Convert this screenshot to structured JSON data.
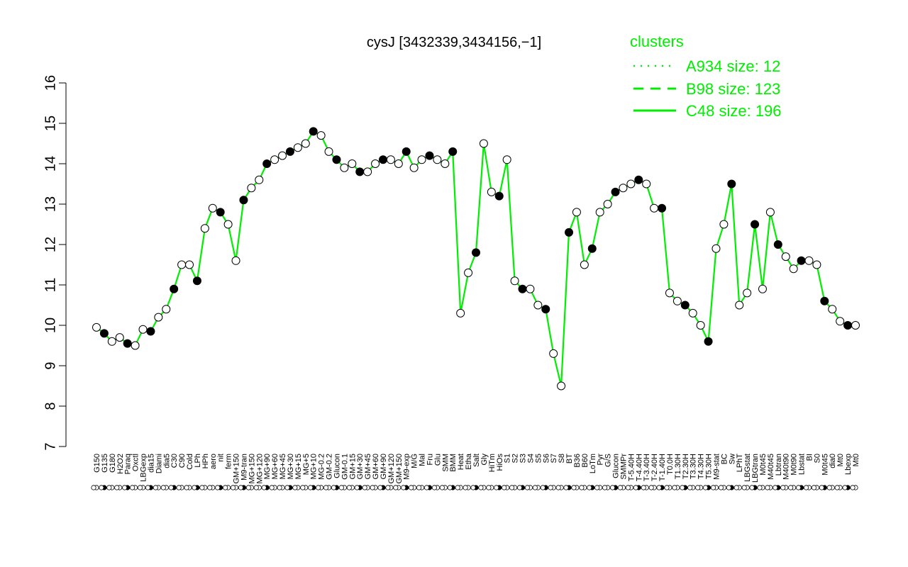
{
  "chart_data": {
    "type": "line",
    "title": "cysJ [3432339,3434156,−1]",
    "ylim": [
      7,
      16
    ],
    "y_ticks": [
      7,
      8,
      9,
      10,
      11,
      12,
      13,
      14,
      15,
      16
    ],
    "legend": {
      "title": "clusters",
      "placement": "top-right",
      "entries": [
        {
          "label": "A934 size: 12",
          "style": "dotted"
        },
        {
          "label": "B98 size: 123",
          "style": "dashed"
        },
        {
          "label": "C48 size: 196",
          "style": "solid"
        }
      ]
    },
    "colors": {
      "series": "#00ee00",
      "points_light": "#ffffff",
      "points_dark": "#000000"
    },
    "tick_labels": [
      "G150",
      "G135",
      "G180",
      "H2O2",
      "Paraq",
      "Oxctl",
      "LBGexp",
      "dia15",
      "Diami",
      "dia5",
      "C30",
      "C90",
      "Cold",
      "LPh",
      "HPh",
      "aero",
      "nit",
      "ferm",
      "GM+150",
      "M9-tran",
      "MG+150",
      "MG+120",
      "MG+90",
      "MG+60",
      "MG+45",
      "MG+30",
      "MG+15",
      "MG+5",
      "MG+10",
      "MG-0.2",
      "GM-0.2",
      "Glucon",
      "GM-0.1",
      "GM+15",
      "GM+30",
      "GM+45",
      "GM+60",
      "GM+90",
      "GM+120",
      "GM+150",
      "M9-exp",
      "M/G",
      "Mal",
      "Fru",
      "Glu",
      "SMM",
      "BMM",
      "Heat",
      "Etha",
      "Salt",
      "Gly",
      "HiTm",
      "HiOs",
      "S1",
      "S2",
      "S3",
      "S4",
      "S5",
      "S6",
      "S7",
      "S8",
      "BT",
      "B36",
      "B60",
      "LoTm",
      "Pyr",
      "G/S",
      "Glucon",
      "SMMPr",
      "T-5.40H",
      "T-4.40H",
      "T-3.40H",
      "T-2.40H",
      "T-1.40H",
      "T0.0H",
      "T1.30H",
      "T2.30H",
      "T3.30H",
      "T4.30H",
      "T5.30H",
      "M9-stat",
      "BC",
      "Sw",
      "LPhT",
      "LBGstat",
      "LBGtran",
      "M0t45",
      "M40t45",
      "Lbtran",
      "M40t90",
      "M0t90",
      "Lbstat",
      "BI",
      "S0",
      "M0t45",
      "dia0",
      "Mt0",
      "Lbexp",
      "Mt0"
    ],
    "series": [
      {
        "values": [
          9.95,
          9.8,
          9.6,
          9.7,
          9.55,
          9.5,
          9.9,
          9.85,
          10.2,
          10.4,
          10.9,
          11.5,
          11.5,
          11.1,
          12.4,
          12.9,
          12.8,
          12.5,
          11.6,
          13.1,
          13.4,
          13.6,
          14.0,
          14.1,
          14.2,
          14.3,
          14.4,
          14.5,
          14.8,
          14.7,
          14.3,
          14.1,
          13.9,
          14.0,
          13.8,
          13.8,
          14.0,
          14.1,
          14.1,
          14.0,
          14.3,
          13.9,
          14.1,
          14.2,
          14.1,
          14.0,
          14.3,
          10.3,
          11.3,
          11.8,
          14.5,
          13.3,
          13.2,
          14.1,
          11.1,
          10.9,
          10.9,
          10.5,
          10.4,
          9.3,
          8.5,
          12.3,
          12.8,
          11.5,
          11.9,
          12.8,
          13.0,
          13.3,
          13.4,
          13.5,
          13.6,
          13.5,
          12.9,
          12.9,
          10.8,
          10.6,
          10.5,
          10.3,
          10.0,
          9.6,
          11.9,
          12.5,
          13.5,
          10.5,
          10.8,
          12.5,
          10.9,
          12.8,
          12.0,
          11.7,
          11.4,
          11.6,
          11.6,
          11.5,
          10.6,
          10.4,
          10.1,
          10.0,
          10.0
        ]
      }
    ]
  }
}
